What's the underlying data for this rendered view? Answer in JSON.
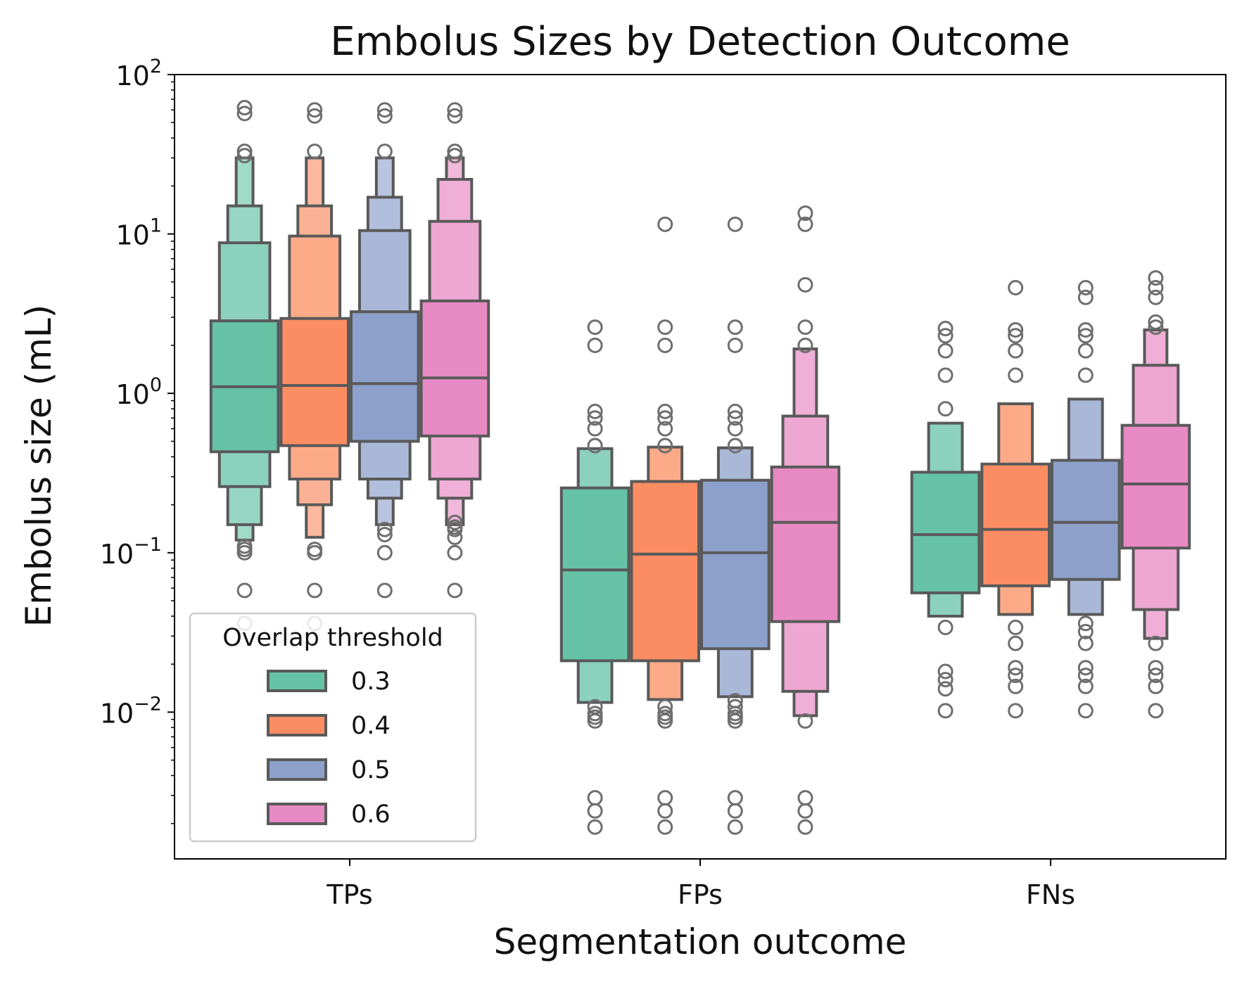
{
  "chart_data": {
    "type": "boxen",
    "title": "Embolus Sizes by Detection Outcome",
    "xlabel": "Segmentation outcome",
    "ylabel": "Embolus size (mL)",
    "yscale": "log",
    "ylim": [
      0.0012,
      100
    ],
    "yticks": [
      {
        "value": 0.01,
        "base": "10",
        "exp": "−2"
      },
      {
        "value": 0.1,
        "base": "10",
        "exp": "−1"
      },
      {
        "value": 1,
        "base": "10",
        "exp": "0"
      },
      {
        "value": 10,
        "base": "10",
        "exp": "1"
      },
      {
        "value": 100,
        "base": "10",
        "exp": "2"
      }
    ],
    "categories": [
      "TPs",
      "FPs",
      "FNs"
    ],
    "legend": {
      "title": "Overlap threshold",
      "location": "lower-left"
    },
    "series": [
      {
        "name": "0.3",
        "color": "#66c2a5",
        "groups": [
          {
            "median": 1.1,
            "levels": [
              [
                0.43,
                2.85
              ],
              [
                0.26,
                8.8
              ],
              [
                0.15,
                15
              ],
              [
                0.12,
                30
              ]
            ],
            "outliers": [
              0.1,
              0.105,
              0.11,
              0.058,
              0.036,
              33,
              31,
              57,
              62
            ]
          },
          {
            "median": 0.078,
            "levels": [
              [
                0.021,
                0.255
              ],
              [
                0.0115,
                0.45
              ]
            ],
            "outliers": [
              0.0088,
              0.0093,
              0.0098,
              0.0108,
              0.0019,
              0.0024,
              0.0029,
              0.47,
              0.6,
              0.7,
              0.77,
              2.0,
              2.6
            ]
          },
          {
            "median": 0.13,
            "levels": [
              [
                0.056,
                0.32
              ],
              [
                0.04,
                0.65
              ]
            ],
            "outliers": [
              0.034,
              0.018,
              0.016,
              0.014,
              0.0102,
              0.8,
              1.3,
              1.85,
              2.3,
              2.55
            ]
          }
        ]
      },
      {
        "name": "0.4",
        "color": "#fc8d62",
        "groups": [
          {
            "median": 1.12,
            "levels": [
              [
                0.47,
                2.95
              ],
              [
                0.29,
                9.7
              ],
              [
                0.2,
                15
              ],
              [
                0.125,
                30
              ]
            ],
            "outliers": [
              0.1,
              0.105,
              0.058,
              0.036,
              33,
              55,
              60
            ]
          },
          {
            "median": 0.098,
            "levels": [
              [
                0.021,
                0.28
              ],
              [
                0.012,
                0.46
              ]
            ],
            "outliers": [
              0.0088,
              0.0093,
              0.0098,
              0.0108,
              0.0019,
              0.0024,
              0.0029,
              0.47,
              0.6,
              0.7,
              0.77,
              2.0,
              2.6,
              11.5
            ]
          },
          {
            "median": 0.14,
            "levels": [
              [
                0.062,
                0.36
              ],
              [
                0.041,
                0.86
              ]
            ],
            "outliers": [
              0.034,
              0.027,
              0.019,
              0.017,
              0.0145,
              0.0102,
              1.3,
              1.85,
              2.3,
              2.5,
              4.6
            ]
          }
        ]
      },
      {
        "name": "0.5",
        "color": "#8da0cb",
        "groups": [
          {
            "median": 1.15,
            "levels": [
              [
                0.5,
                3.25
              ],
              [
                0.29,
                10.5
              ],
              [
                0.22,
                17
              ],
              [
                0.15,
                30
              ]
            ],
            "outliers": [
              0.13,
              0.14,
              0.1,
              0.058,
              33,
              55,
              60
            ]
          },
          {
            "median": 0.1,
            "levels": [
              [
                0.025,
                0.285
              ],
              [
                0.0125,
                0.455
              ]
            ],
            "outliers": [
              0.0088,
              0.0093,
              0.0098,
              0.0108,
              0.0118,
              0.0019,
              0.0024,
              0.0029,
              0.47,
              0.6,
              0.7,
              0.77,
              2.0,
              2.6,
              11.5
            ]
          },
          {
            "median": 0.155,
            "levels": [
              [
                0.068,
                0.38
              ],
              [
                0.041,
                0.92
              ]
            ],
            "outliers": [
              0.036,
              0.032,
              0.027,
              0.019,
              0.017,
              0.0145,
              0.0102,
              1.3,
              1.85,
              2.3,
              2.5,
              4.0,
              4.6
            ]
          }
        ]
      },
      {
        "name": "0.6",
        "color": "#e78ac3",
        "groups": [
          {
            "median": 1.25,
            "levels": [
              [
                0.54,
                3.8
              ],
              [
                0.29,
                12
              ],
              [
                0.22,
                22
              ],
              [
                0.15,
                30
              ]
            ],
            "outliers": [
              0.155,
              0.145,
              0.14,
              0.125,
              0.1,
              0.058,
              31,
              33,
              55,
              60
            ]
          },
          {
            "median": 0.155,
            "levels": [
              [
                0.037,
                0.345
              ],
              [
                0.0135,
                0.72
              ],
              [
                0.0095,
                1.9
              ]
            ],
            "outliers": [
              0.0088,
              0.0019,
              0.0024,
              0.0029,
              2.0,
              2.6,
              4.8,
              11.5,
              13.5
            ]
          },
          {
            "median": 0.27,
            "levels": [
              [
                0.107,
                0.63
              ],
              [
                0.044,
                1.5
              ],
              [
                0.029,
                2.5
              ]
            ],
            "outliers": [
              0.027,
              0.019,
              0.017,
              0.0145,
              0.0102,
              2.6,
              2.8,
              4.0,
              4.6,
              5.3
            ]
          }
        ]
      }
    ]
  }
}
